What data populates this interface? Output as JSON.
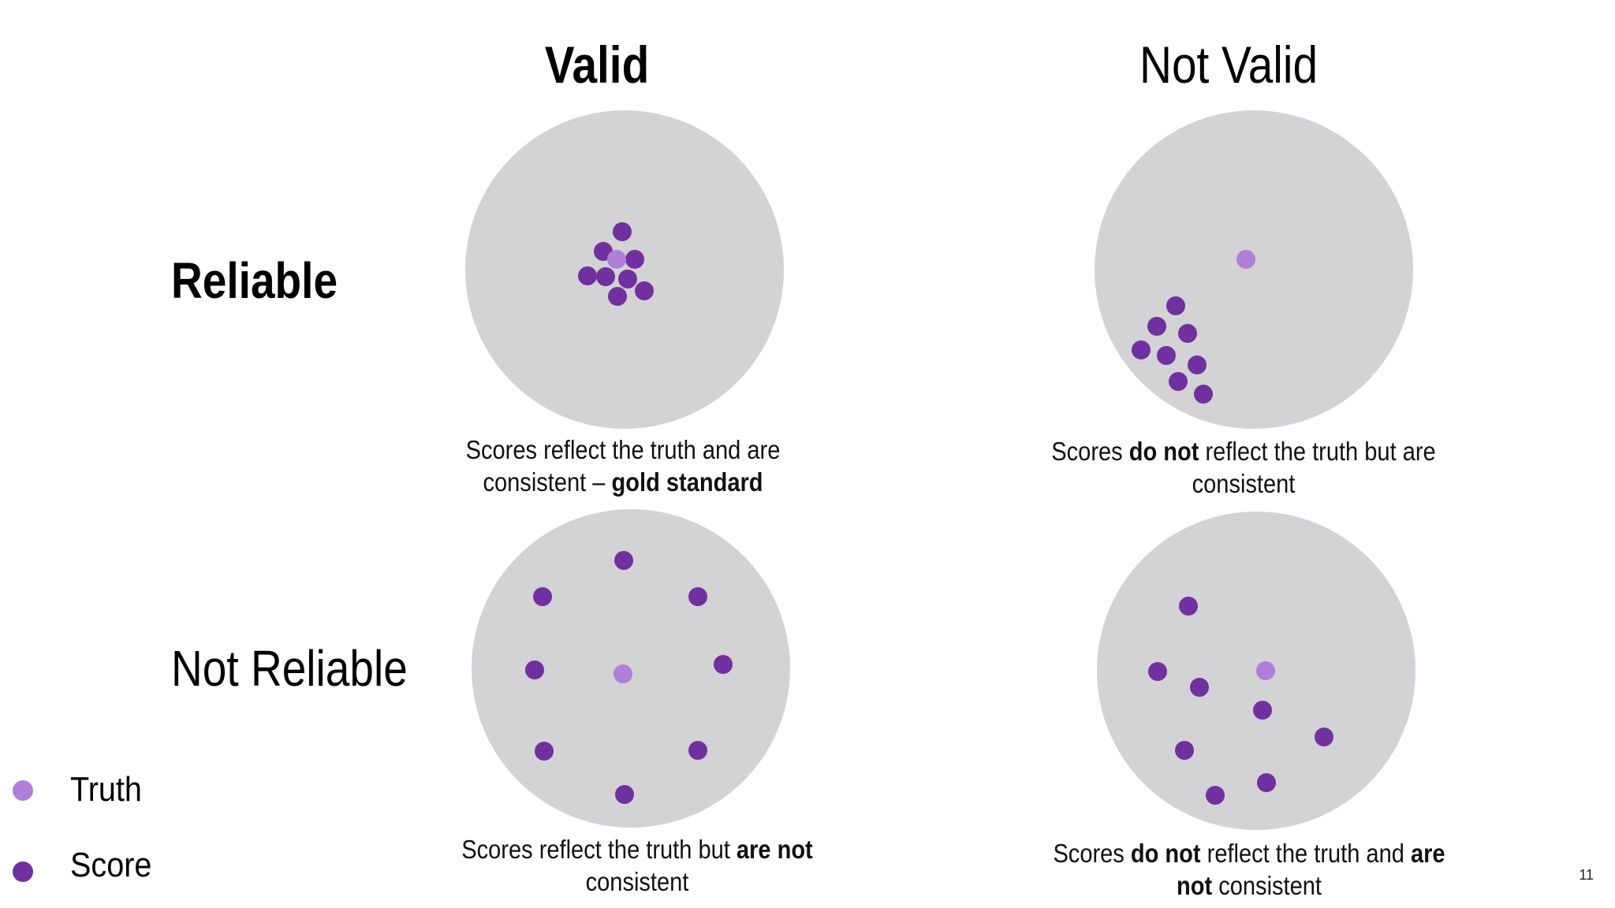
{
  "headers": {
    "valid": "Valid",
    "not_valid": "Not Valid"
  },
  "rows": {
    "reliable": "Reliable",
    "not_reliable": "Not Reliable"
  },
  "captions": {
    "reliable_valid": {
      "pre": "Scores reflect the truth and are",
      "line2_pre": "consistent – ",
      "bold": "gold standard"
    },
    "reliable_not_valid": {
      "pre": "Scores ",
      "bold1": "do not",
      "mid": " reflect the truth but are",
      "line2": "consistent"
    },
    "not_reliable_valid": {
      "pre": "Scores reflect the truth but ",
      "bold1": "are not",
      "line2": "consistent"
    },
    "not_reliable_not_valid": {
      "pre": "Scores ",
      "bold1": "do not",
      "mid": " reflect the truth and ",
      "bold2": "are",
      "bold3": "not",
      "line2": " consistent"
    }
  },
  "legend": {
    "truth": "Truth",
    "score": "Score"
  },
  "colors": {
    "target": "#d3d2d4",
    "truth": "#b07fd9",
    "score": "#7030a0"
  },
  "page_number": "11"
}
